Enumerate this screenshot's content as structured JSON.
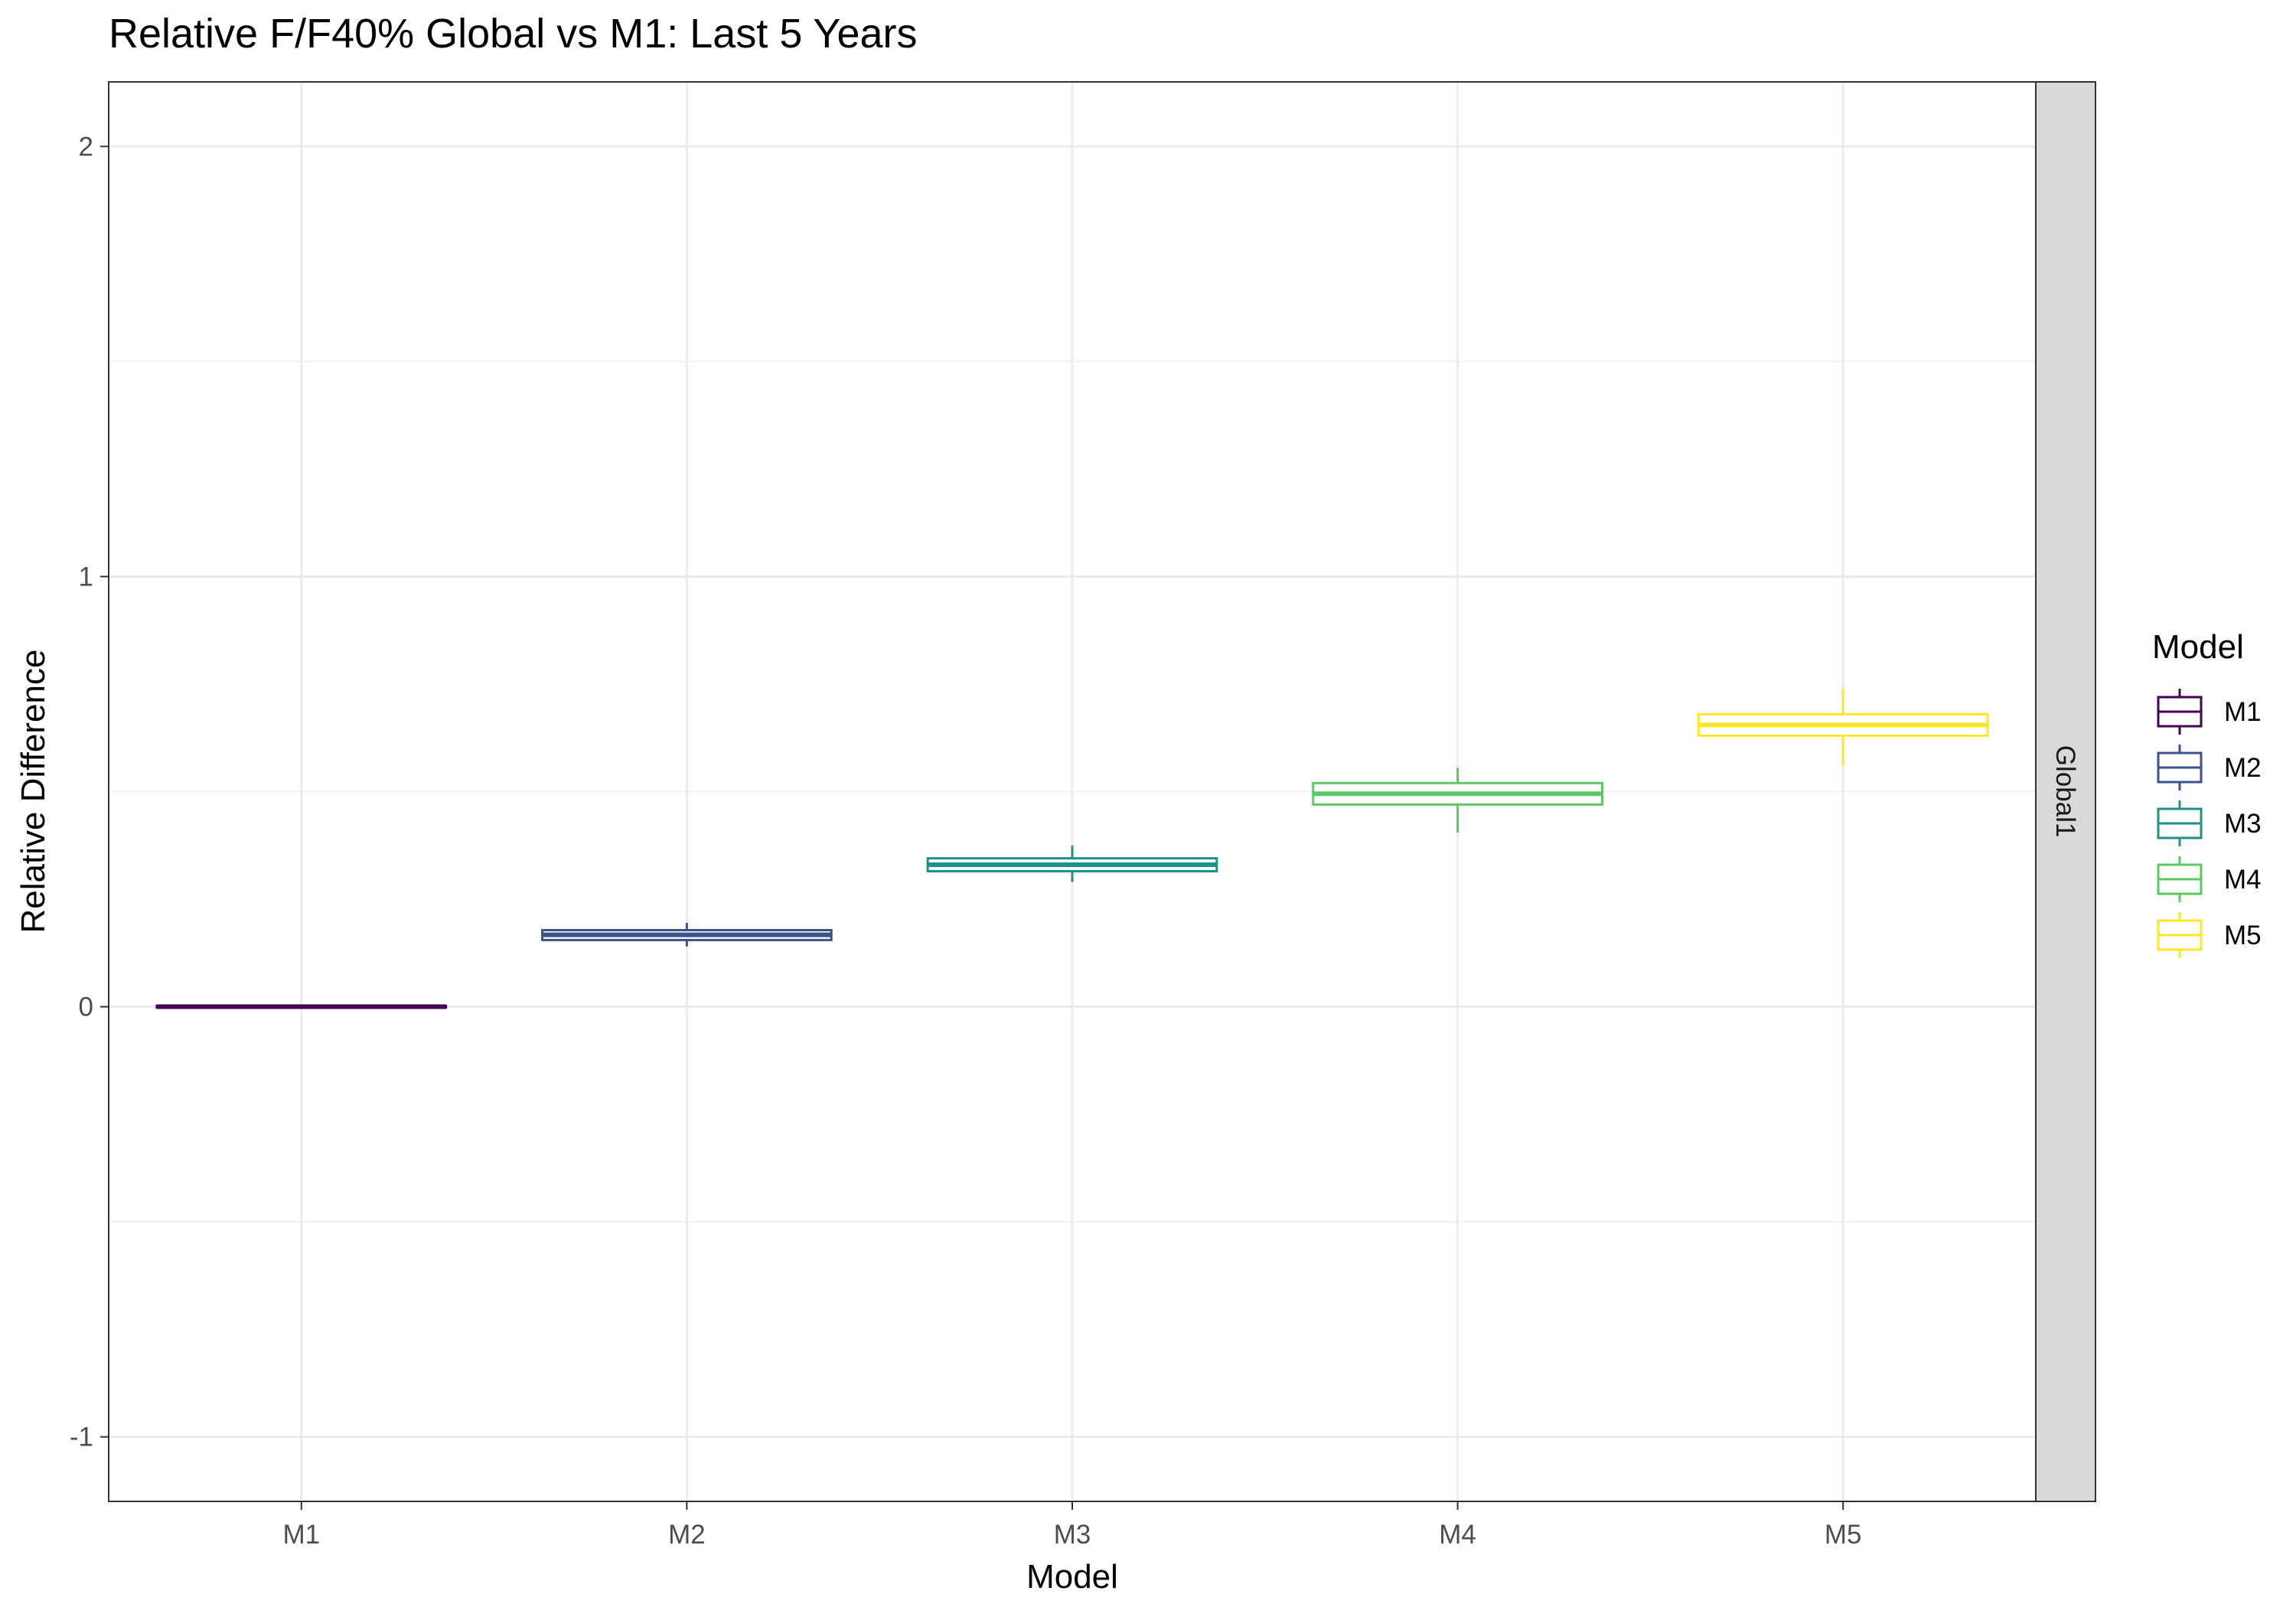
{
  "chart_data": {
    "type": "boxplot",
    "title": "Relative F/F40% Global vs M1: Last 5 Years",
    "xlabel": "Model",
    "ylabel": "Relative Difference",
    "categories": [
      "M1",
      "M2",
      "M3",
      "M4",
      "M5"
    ],
    "ylim": [
      -1.15,
      2.15
    ],
    "yticks": [
      -1,
      0,
      1,
      2
    ],
    "facet_label": "Global1",
    "grid": true,
    "legend": {
      "title": "Model",
      "placement": "right",
      "items": [
        "M1",
        "M2",
        "M3",
        "M4",
        "M5"
      ]
    },
    "series": [
      {
        "name": "M1",
        "color": "#440154",
        "whisker_low": -0.003,
        "q1": -0.002,
        "median": 0.0,
        "q3": 0.002,
        "whisker_high": 0.003
      },
      {
        "name": "M2",
        "color": "#3B528B",
        "whisker_low": 0.14,
        "q1": 0.155,
        "median": 0.167,
        "q3": 0.178,
        "whisker_high": 0.195
      },
      {
        "name": "M3",
        "color": "#21908C",
        "whisker_low": 0.29,
        "q1": 0.315,
        "median": 0.33,
        "q3": 0.345,
        "whisker_high": 0.375
      },
      {
        "name": "M4",
        "color": "#5DC863",
        "whisker_low": 0.405,
        "q1": 0.47,
        "median": 0.495,
        "q3": 0.52,
        "whisker_high": 0.555
      },
      {
        "name": "M5",
        "color": "#FDE725",
        "whisker_low": 0.56,
        "q1": 0.63,
        "median": 0.655,
        "q3": 0.68,
        "whisker_high": 0.74
      }
    ]
  }
}
